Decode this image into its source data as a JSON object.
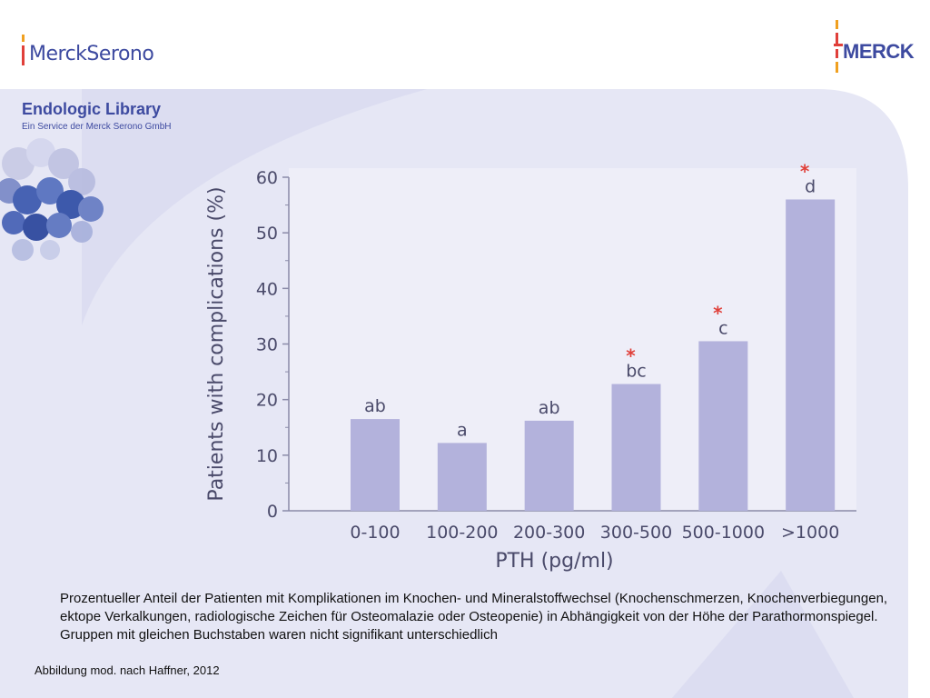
{
  "header": {
    "left_logo_text": "MerckSerono",
    "right_logo_text": "MERCK"
  },
  "library": {
    "title": "Endologic Library",
    "subtitle": "Ein Service der Merck Serono GmbH"
  },
  "chart_data": {
    "type": "bar",
    "ylabel": "Patients with complications (%)",
    "xlabel": "PTH (pg/ml)",
    "ylim": [
      0,
      60
    ],
    "yticks": [
      0,
      10,
      20,
      30,
      40,
      50,
      60
    ],
    "categories": [
      "0-100",
      "100-200",
      "200-300",
      "300-500",
      "500-1000",
      ">1000"
    ],
    "values": [
      16.5,
      12.2,
      16.2,
      22.8,
      30.5,
      56.0
    ],
    "bar_labels": [
      "ab",
      "a",
      "ab",
      "bc",
      "c",
      "d"
    ],
    "significance": [
      false,
      false,
      false,
      true,
      true,
      true
    ],
    "colors": {
      "bar": "#b3b2dc",
      "plot_bg": "#eeeef8",
      "star": "#e0403a",
      "text": "#4a4a6a"
    }
  },
  "caption": "Prozentueller Anteil der Patienten mit Komplikationen im Knochen- und Mineralstoffwechsel (Knochenschmerzen, Knochenverbiegungen, ektope Verkalkungen, radiologische Zeichen für Osteomalazie oder Osteopenie) in Abhängigkeit von der Höhe der Parathormonspiegel. Gruppen mit gleichen Buchstaben waren nicht signifikant unterschiedlich",
  "source": "Abbildung mod. nach Haffner, 2012"
}
